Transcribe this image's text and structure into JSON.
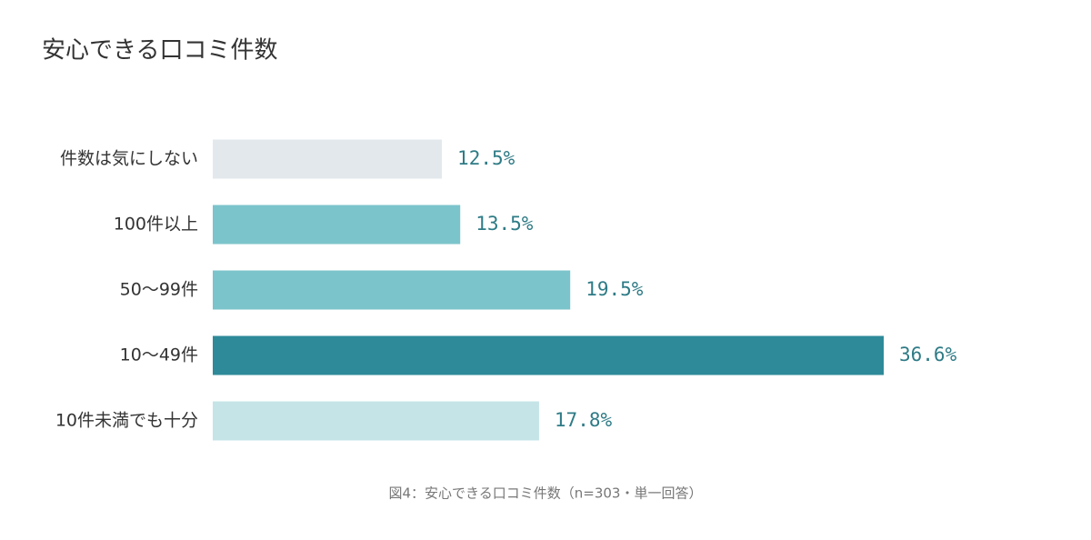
{
  "chart_data": {
    "type": "hbar",
    "title": "安心できる口コミ件数",
    "categories": [
      "件数は気にしない",
      "100件以上",
      "50〜99件",
      "10〜49件",
      "10件未満でも十分"
    ],
    "values": [
      12.5,
      13.5,
      19.5,
      36.6,
      17.8
    ],
    "value_labels": [
      "12.5%",
      "13.5%",
      "19.5%",
      "36.6%",
      "17.8%"
    ],
    "colors": [
      "#e3e8ec",
      "#7cc4cc",
      "#7cc4cc",
      "#2e8a99",
      "#c5e4e8"
    ],
    "caption": "図4：安心できる口コミ件数（n=303・単一回答）"
  }
}
